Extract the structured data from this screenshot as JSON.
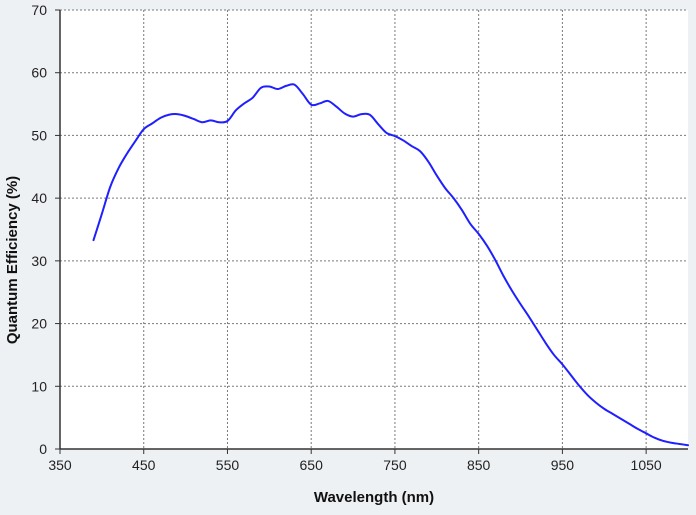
{
  "chart_data": {
    "type": "line",
    "title": "",
    "xlabel": "Wavelength (nm)",
    "ylabel": "Quantum Efficiency (%)",
    "xlim": [
      350,
      1100
    ],
    "ylim": [
      0,
      70
    ],
    "x_ticks": [
      350,
      450,
      550,
      650,
      750,
      850,
      950,
      1050
    ],
    "y_ticks": [
      0,
      10,
      20,
      30,
      40,
      50,
      60,
      70
    ],
    "grid": true,
    "grid_style": "dotted",
    "legend": "none",
    "series": [
      {
        "color": "#1f1fff",
        "points": [
          [
            390,
            33.3
          ],
          [
            400,
            37.5
          ],
          [
            410,
            41.8
          ],
          [
            420,
            44.8
          ],
          [
            430,
            47.1
          ],
          [
            440,
            49.1
          ],
          [
            450,
            51.0
          ],
          [
            460,
            51.9
          ],
          [
            470,
            52.8
          ],
          [
            480,
            53.3
          ],
          [
            490,
            53.4
          ],
          [
            500,
            53.1
          ],
          [
            510,
            52.6
          ],
          [
            520,
            52.1
          ],
          [
            530,
            52.4
          ],
          [
            540,
            52.1
          ],
          [
            550,
            52.3
          ],
          [
            560,
            54.0
          ],
          [
            570,
            55.1
          ],
          [
            580,
            56.0
          ],
          [
            590,
            57.6
          ],
          [
            600,
            57.8
          ],
          [
            610,
            57.4
          ],
          [
            620,
            57.9
          ],
          [
            630,
            58.1
          ],
          [
            640,
            56.6
          ],
          [
            650,
            54.9
          ],
          [
            660,
            55.1
          ],
          [
            670,
            55.5
          ],
          [
            680,
            54.6
          ],
          [
            690,
            53.5
          ],
          [
            700,
            53.0
          ],
          [
            710,
            53.4
          ],
          [
            720,
            53.3
          ],
          [
            730,
            51.8
          ],
          [
            740,
            50.4
          ],
          [
            750,
            49.9
          ],
          [
            760,
            49.2
          ],
          [
            770,
            48.3
          ],
          [
            780,
            47.5
          ],
          [
            790,
            45.8
          ],
          [
            800,
            43.6
          ],
          [
            810,
            41.6
          ],
          [
            820,
            40.0
          ],
          [
            830,
            38.1
          ],
          [
            840,
            35.9
          ],
          [
            850,
            34.3
          ],
          [
            860,
            32.4
          ],
          [
            870,
            30.1
          ],
          [
            880,
            27.5
          ],
          [
            890,
            25.2
          ],
          [
            900,
            23.1
          ],
          [
            910,
            21.1
          ],
          [
            920,
            19.0
          ],
          [
            930,
            16.9
          ],
          [
            940,
            15.0
          ],
          [
            950,
            13.5
          ],
          [
            960,
            11.8
          ],
          [
            970,
            10.1
          ],
          [
            980,
            8.6
          ],
          [
            990,
            7.4
          ],
          [
            1000,
            6.4
          ],
          [
            1010,
            5.6
          ],
          [
            1020,
            4.8
          ],
          [
            1030,
            4.0
          ],
          [
            1040,
            3.2
          ],
          [
            1050,
            2.5
          ],
          [
            1060,
            1.8
          ],
          [
            1070,
            1.3
          ],
          [
            1080,
            1.0
          ],
          [
            1090,
            0.8
          ],
          [
            1100,
            0.6
          ]
        ]
      }
    ]
  }
}
